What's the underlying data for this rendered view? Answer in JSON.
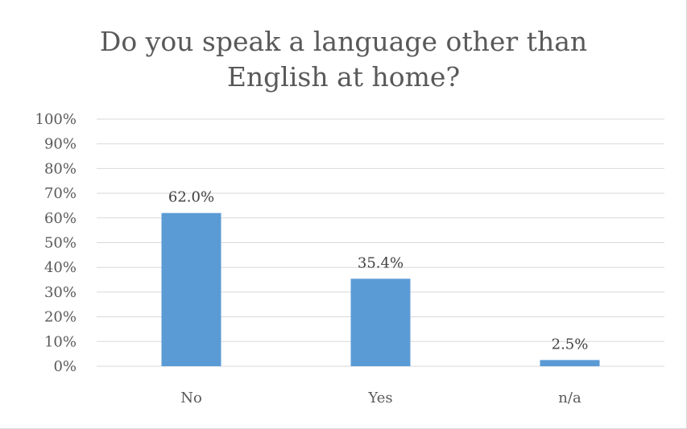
{
  "chart_data": {
    "type": "bar",
    "title": "Do you speak a language other than\nEnglish at home?",
    "categories": [
      "No",
      "Yes",
      "n/a"
    ],
    "values": [
      62.0,
      35.4,
      2.5
    ],
    "data_labels": [
      "62.0%",
      "35.4%",
      "2.5%"
    ],
    "ylim": [
      0,
      100
    ],
    "y_ticks": [
      0,
      10,
      20,
      30,
      40,
      50,
      60,
      70,
      80,
      90,
      100
    ],
    "y_tick_labels": [
      "0%",
      "10%",
      "20%",
      "30%",
      "40%",
      "50%",
      "60%",
      "70%",
      "80%",
      "90%",
      "100%"
    ],
    "grid": true,
    "legend": "none",
    "bar_color": "#5b9bd5",
    "grid_color": "#d9d9d9"
  }
}
